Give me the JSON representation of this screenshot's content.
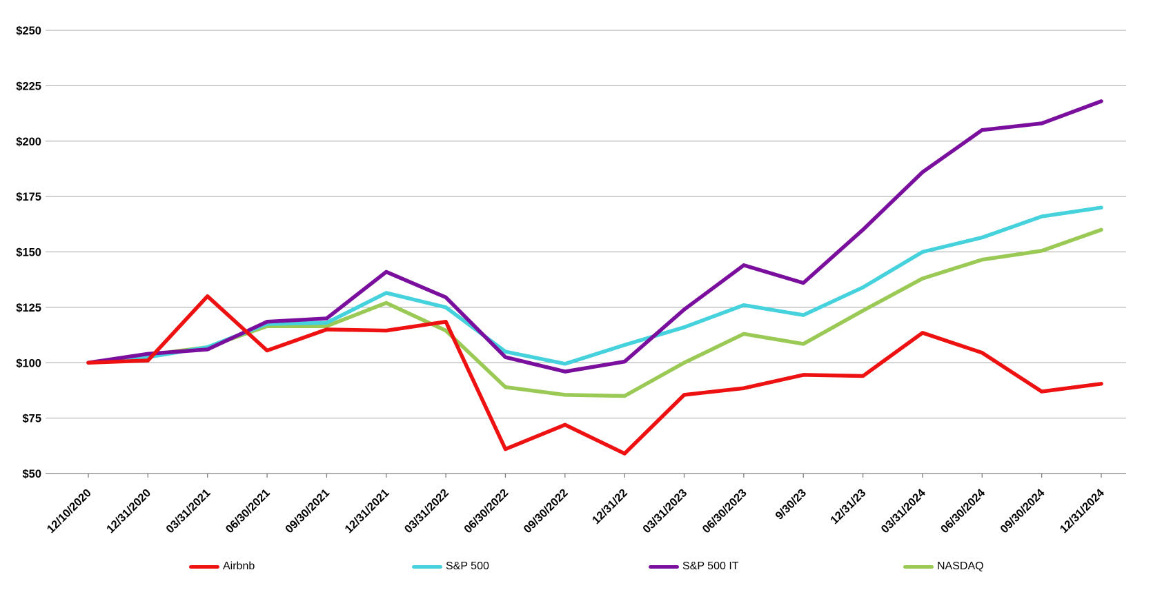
{
  "chart_data": {
    "type": "line",
    "title": "",
    "xlabel": "",
    "ylabel": "",
    "categories": [
      "12/10/2020",
      "12/31/2020",
      "03/31/2021",
      "06/30/2021",
      "09/30/2021",
      "12/31/2021",
      "03/31/2022",
      "06/30/2022",
      "09/30/2022",
      "12/31/22",
      "03/31/2023",
      "06/30/2023",
      "9/30/23",
      "12/31/23",
      "03/31/2024",
      "06/30/2024",
      "09/30/2024",
      "12/31/2024"
    ],
    "series": [
      {
        "name": "Airbnb",
        "color": "#ee1111",
        "values": [
          100,
          101,
          130,
          105.5,
          115,
          114.5,
          118.5,
          61,
          72,
          59,
          85.5,
          88.5,
          94.5,
          94,
          113.5,
          104.5,
          87,
          90.5
        ]
      },
      {
        "name": "S&P 500",
        "color": "#46d2dc",
        "values": [
          100,
          102.5,
          107,
          117.5,
          118,
          131.5,
          125,
          105,
          99.5,
          108,
          116,
          126,
          121.5,
          134,
          150,
          156.5,
          166,
          170
        ]
      },
      {
        "name": "S&P 500 IT",
        "color": "#7a0f9e",
        "values": [
          100,
          104,
          106,
          118.5,
          120,
          141,
          129.5,
          102.5,
          96,
          100.5,
          124,
          144,
          136,
          160,
          186,
          205,
          208,
          218
        ]
      },
      {
        "name": "NASDAQ",
        "color": "#9aca55",
        "values": [
          100,
          103.5,
          107,
          116.5,
          116.5,
          127,
          114.5,
          89,
          85.5,
          85,
          100,
          113,
          108.5,
          123.5,
          138,
          146.5,
          150.5,
          160
        ]
      }
    ],
    "ylim": [
      50,
      250
    ],
    "y_tick_step": 25,
    "y_tick_prefix": "$",
    "y_tick_labels": [
      "$50",
      "$75",
      "$100",
      "$125",
      "$150",
      "$175",
      "$200",
      "$225",
      "$250"
    ],
    "x_tick_rotation": -45,
    "grid": true,
    "grid_color": "#a6a6a6",
    "axis_color": "#808080",
    "text_color": "#000000",
    "legend_position": "bottom",
    "draw_order": [
      "NASDAQ",
      "S&P 500",
      "S&P 500 IT",
      "Airbnb"
    ]
  }
}
